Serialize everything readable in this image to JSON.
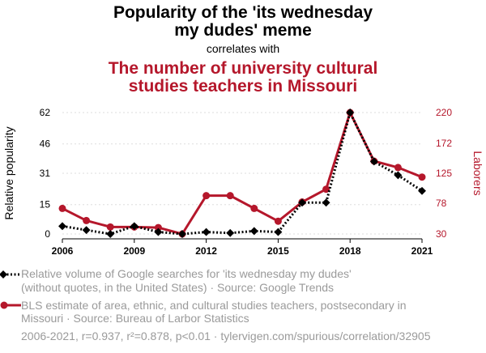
{
  "header": {
    "title_line1": "Popularity of the 'its wednesday",
    "title_line2": "my dudes' meme",
    "correlates_with": "correlates with",
    "second_line1": "The number of university cultural",
    "second_line2": "studies teachers in Missouri"
  },
  "legend": {
    "series1_line1": "Relative volume of Google searches for 'its wednesday my dudes'",
    "series1_line2": "(without quotes, in the United States) · Source: Google Trends",
    "series2_line1": "BLS estimate of area, ethnic, and cultural studies teachers, postsecondary in",
    "series2_line2": "Missouri · Source: Bureau of Larbor Statistics"
  },
  "footer": {
    "text": "2006-2021, r=0.937, r²=0.878, p<0.01 · tylervigen.com/spurious/correlation/32905"
  },
  "colors": {
    "series1": "#000000",
    "series2": "#b5172b",
    "grid": "#dddddd",
    "legend_text": "#9a9a9a"
  },
  "chart_data": {
    "type": "line",
    "x": [
      2006,
      2007,
      2008,
      2009,
      2010,
      2011,
      2012,
      2013,
      2014,
      2015,
      2016,
      2017,
      2018,
      2019,
      2020,
      2021
    ],
    "x_ticks": [
      "2006",
      "2009",
      "2012",
      "2015",
      "2018",
      "2021"
    ],
    "xlim": [
      2006,
      2021
    ],
    "ylabel_left": "Relative popularity",
    "ylabel_right": "Laborers",
    "y_left_ticks": [
      "0",
      "15",
      "31",
      "46",
      "62"
    ],
    "y_left_lim": [
      0,
      62
    ],
    "y_right_ticks": [
      "30",
      "78",
      "125",
      "172",
      "220"
    ],
    "y_right_lim": [
      30,
      220
    ],
    "grid": "horizontal dotted",
    "series": [
      {
        "name": "Relative volume of Google searches for 'its wednesday my dudes'",
        "axis": "left",
        "style": "dotted line, diamond markers",
        "values": [
          4,
          2,
          0,
          4,
          1,
          0,
          1,
          0.5,
          1.5,
          1,
          16,
          16,
          62,
          37,
          30,
          22
        ]
      },
      {
        "name": "BLS estimate of area, ethnic, and cultural studies teachers, postsecondary in Missouri",
        "axis": "right",
        "style": "solid line, circle markers",
        "values": [
          70,
          51,
          41,
          41,
          40,
          30,
          90,
          90,
          70,
          50,
          80,
          100,
          220,
          144,
          134,
          119
        ]
      }
    ]
  }
}
